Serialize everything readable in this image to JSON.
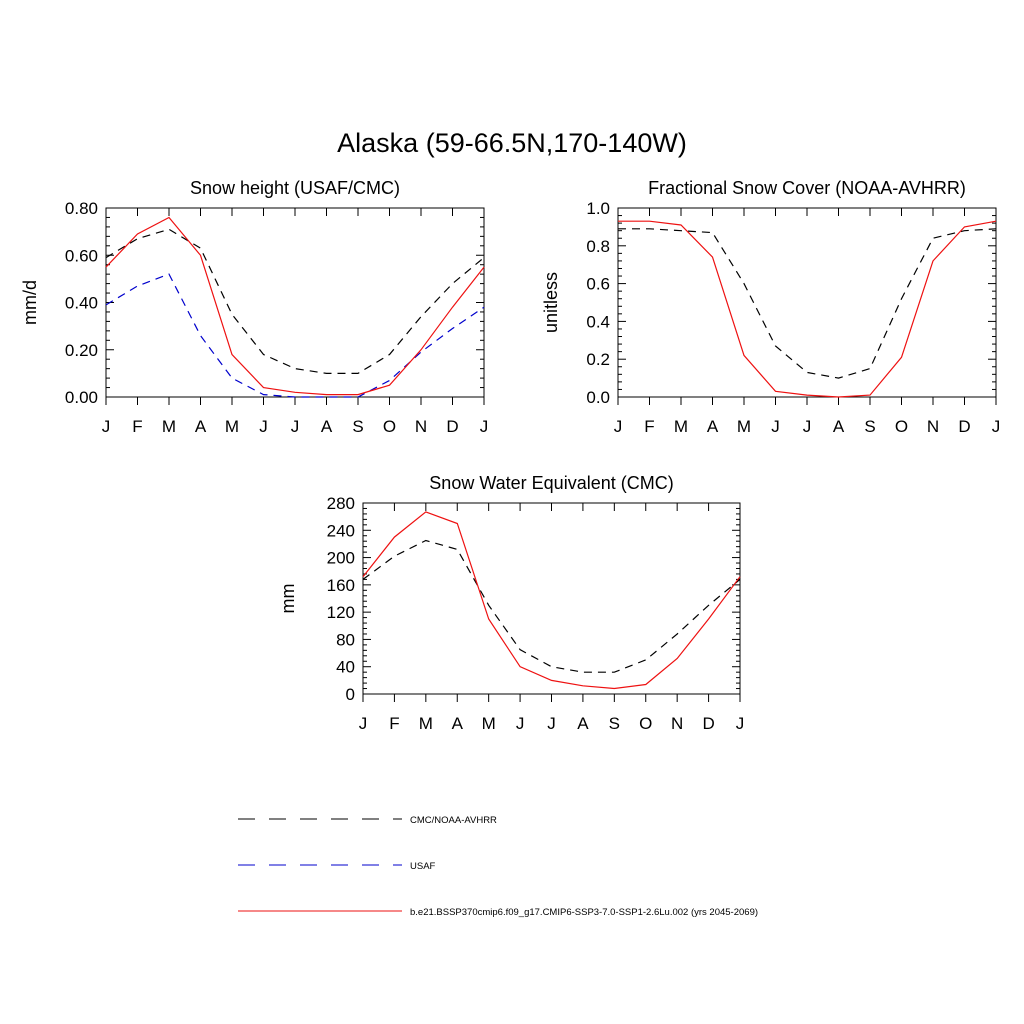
{
  "title": "Alaska (59-66.5N,170-140W)",
  "colors": {
    "cmc": "#000000",
    "usaf": "#0000cc",
    "model": "#ee1111"
  },
  "legend": {
    "items": [
      {
        "label": "CMC/NOAA-AVHRR",
        "color": "#000000",
        "style": "dashed"
      },
      {
        "label": "USAF",
        "color": "#0000cc",
        "style": "dashed"
      },
      {
        "label": "b.e21.BSSP370cmip6.f09_g17.CMIP6-SSP3-7.0-SSP1-2.6Lu.002 (yrs 2045-2069)",
        "color": "#ee1111",
        "style": "solid"
      }
    ]
  },
  "chart_data": [
    {
      "type": "line",
      "title": "Snow height (USAF/CMC)",
      "ylabel": "mm/d",
      "xlabel": "",
      "categories": [
        "J",
        "F",
        "M",
        "A",
        "M",
        "J",
        "J",
        "A",
        "S",
        "O",
        "N",
        "D",
        "J"
      ],
      "ylim": [
        0,
        0.8
      ],
      "yticks": [
        0,
        0.2,
        0.4,
        0.6,
        0.8
      ],
      "ytick_labels": [
        "0.00",
        "0.20",
        "0.40",
        "0.60",
        "0.80"
      ],
      "series": [
        {
          "name": "CMC/NOAA-AVHRR",
          "color": "#000000",
          "dash": true,
          "values": [
            0.59,
            0.67,
            0.71,
            0.63,
            0.35,
            0.18,
            0.12,
            0.1,
            0.1,
            0.18,
            0.34,
            0.48,
            0.59
          ]
        },
        {
          "name": "USAF",
          "color": "#0000cc",
          "dash": true,
          "values": [
            0.39,
            0.47,
            0.52,
            0.26,
            0.08,
            0.01,
            0.0,
            0.0,
            0.0,
            0.07,
            0.19,
            0.29,
            0.38
          ]
        },
        {
          "name": "b.e21.BSSP370cmip6.f09_g17.CMIP6-SSP3-7.0-SSP1-2.6Lu.002 (yrs 2045-2069)",
          "color": "#ee1111",
          "dash": false,
          "values": [
            0.55,
            0.69,
            0.76,
            0.6,
            0.18,
            0.04,
            0.02,
            0.01,
            0.01,
            0.05,
            0.2,
            0.38,
            0.55
          ]
        }
      ]
    },
    {
      "type": "line",
      "title": "Fractional Snow Cover (NOAA-AVHRR)",
      "ylabel": "unitless",
      "xlabel": "",
      "categories": [
        "J",
        "F",
        "M",
        "A",
        "M",
        "J",
        "J",
        "A",
        "S",
        "O",
        "N",
        "D",
        "J"
      ],
      "ylim": [
        0,
        1.0
      ],
      "yticks": [
        0,
        0.2,
        0.4,
        0.6,
        0.8,
        1.0
      ],
      "ytick_labels": [
        "0.0",
        "0.2",
        "0.4",
        "0.6",
        "0.8",
        "1.0"
      ],
      "series": [
        {
          "name": "CMC/NOAA-AVHRR",
          "color": "#000000",
          "dash": true,
          "values": [
            0.89,
            0.89,
            0.88,
            0.87,
            0.6,
            0.27,
            0.13,
            0.1,
            0.15,
            0.52,
            0.84,
            0.88,
            0.89
          ]
        },
        {
          "name": "b.e21.BSSP370cmip6.f09_g17.CMIP6-SSP3-7.0-SSP1-2.6Lu.002 (yrs 2045-2069)",
          "color": "#ee1111",
          "dash": false,
          "values": [
            0.93,
            0.93,
            0.91,
            0.74,
            0.22,
            0.03,
            0.01,
            0.0,
            0.01,
            0.21,
            0.72,
            0.9,
            0.93
          ]
        }
      ]
    },
    {
      "type": "line",
      "title": "Snow Water Equivalent (CMC)",
      "ylabel": "mm",
      "xlabel": "",
      "categories": [
        "J",
        "F",
        "M",
        "A",
        "M",
        "J",
        "J",
        "A",
        "S",
        "O",
        "N",
        "D",
        "J"
      ],
      "ylim": [
        0,
        280
      ],
      "yticks": [
        0,
        40,
        80,
        120,
        160,
        200,
        240,
        280
      ],
      "ytick_labels": [
        "0",
        "40",
        "80",
        "120",
        "160",
        "200",
        "240",
        "280"
      ],
      "series": [
        {
          "name": "CMC/NOAA-AVHRR",
          "color": "#000000",
          "dash": true,
          "values": [
            168,
            202,
            225,
            212,
            130,
            65,
            40,
            32,
            32,
            50,
            88,
            130,
            168
          ]
        },
        {
          "name": "b.e21.BSSP370cmip6.f09_g17.CMIP6-SSP3-7.0-SSP1-2.6Lu.002 (yrs 2045-2069)",
          "color": "#ee1111",
          "dash": false,
          "values": [
            172,
            230,
            267,
            250,
            110,
            40,
            20,
            12,
            8,
            14,
            52,
            110,
            172
          ]
        }
      ]
    }
  ]
}
